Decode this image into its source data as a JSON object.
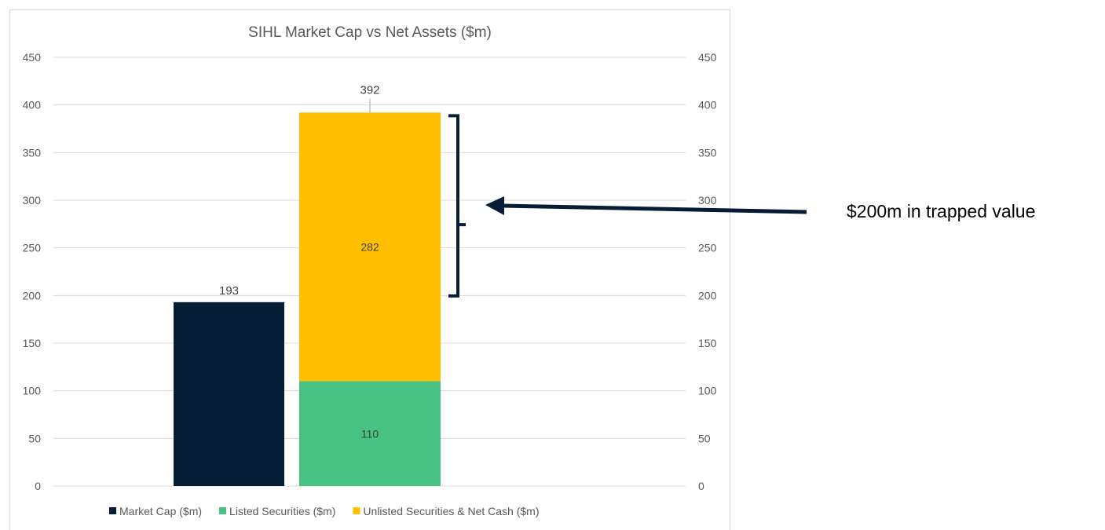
{
  "chart_data": {
    "type": "bar",
    "stacked": true,
    "title": "SIHL Market Cap vs Net Assets ($m)",
    "xlabel": "",
    "ylabel": "",
    "ylim": [
      0,
      450
    ],
    "yticks": [
      0,
      50,
      100,
      150,
      200,
      250,
      300,
      350,
      400,
      450
    ],
    "secondary_axis_ticks": [
      0,
      50,
      100,
      150,
      200,
      250,
      300,
      350,
      400,
      450
    ],
    "grid": true,
    "legend_position": "bottom",
    "bars": [
      {
        "segments": [
          {
            "series": "Market Cap ($m)",
            "value": 193
          }
        ],
        "total_label": "193"
      },
      {
        "segments": [
          {
            "series": "Listed Securities ($m)",
            "value": 110
          },
          {
            "series": "Unlisted Securities & Net Cash ($m)",
            "value": 282
          }
        ],
        "total_label": "392"
      }
    ],
    "series": [
      {
        "name": "Market Cap ($m)",
        "color": "#061d35",
        "values": [
          193,
          null
        ]
      },
      {
        "name": "Listed Securities ($m)",
        "color": "#47c283",
        "values": [
          null,
          110
        ]
      },
      {
        "name": "Unlisted Securities & Net Cash ($m)",
        "color": "#ffbf00",
        "values": [
          null,
          282
        ]
      }
    ],
    "annotations": [
      {
        "text": "$200m in trapped value",
        "points_to_range": [
          193,
          392
        ]
      }
    ]
  },
  "annotation": {
    "text": "$200m in trapped value"
  },
  "colors": {
    "grid": "#d9d9d9",
    "axis_text": "#595959",
    "annotation_arrow": "#061d35"
  }
}
